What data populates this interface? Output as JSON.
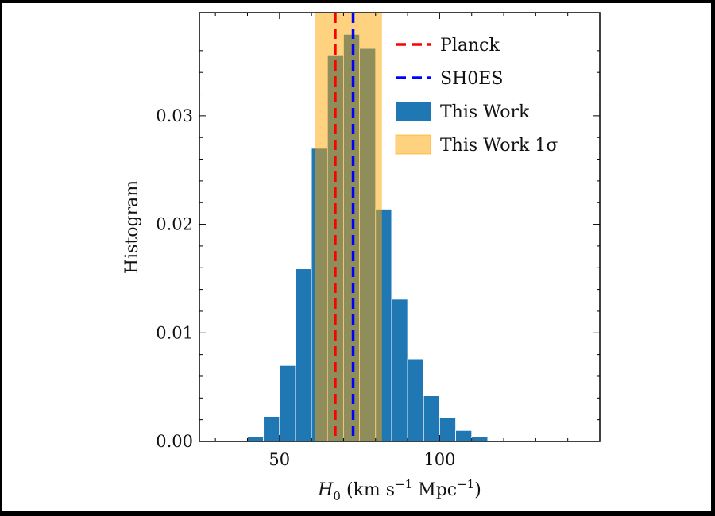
{
  "chart_data": {
    "type": "bar",
    "title": "",
    "xlabel": {
      "symbol": "H",
      "subscript": "0",
      "unit_open": "(km s",
      "exp1": "−1",
      "unit_mid": " Mpc",
      "exp2": "−1",
      "unit_close": ")"
    },
    "ylabel": "Histogram",
    "xlim": [
      25,
      150
    ],
    "ylim": [
      0,
      0.0395
    ],
    "xticks": [
      50,
      100
    ],
    "yticks": [
      0.0,
      0.01,
      0.02,
      0.03
    ],
    "ytick_labels": [
      "0.00",
      "0.01",
      "0.02",
      "0.03"
    ],
    "histogram": {
      "name": "This Work",
      "color": "#1f77b4",
      "bin_width": 5,
      "bin_starts": [
        40,
        45,
        50,
        55,
        60,
        65,
        70,
        75,
        80,
        85,
        90,
        95,
        100,
        105,
        110
      ],
      "values": [
        0.0004,
        0.0023,
        0.007,
        0.0159,
        0.027,
        0.0356,
        0.0375,
        0.0362,
        0.0214,
        0.0131,
        0.0076,
        0.0042,
        0.0022,
        0.001,
        0.0004
      ]
    },
    "vlines": [
      {
        "name": "Planck",
        "x": 67.4,
        "color": "#ff0000",
        "style": "dashed"
      },
      {
        "name": "SH0ES",
        "x": 73.0,
        "color": "#0000ff",
        "style": "dashed"
      }
    ],
    "band": {
      "name": "This Work 1σ",
      "x0": 61.0,
      "x1": 82.0,
      "color": "#ffa500",
      "opacity": 0.5
    },
    "legend": {
      "position": "top-right",
      "entries": [
        "Planck",
        "SH0ES",
        "This Work",
        "This Work 1σ"
      ]
    },
    "grid": false
  }
}
